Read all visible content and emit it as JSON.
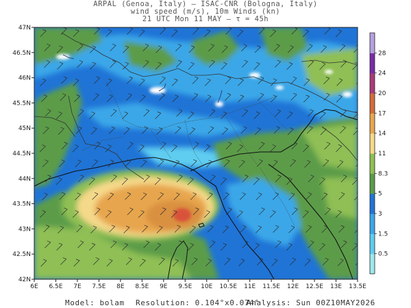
{
  "header": {
    "line1": "ARPAL (Genoa, Italy)  —  ISAC-CNR (Bologna, Italy)",
    "line2": "wind speed (m/s), 10m Winds (kn)",
    "line3": "21 UTC Mon 11 MAY  —  τ = 45h"
  },
  "footer": {
    "model": "Model: bolam",
    "resolution": "Resolution: 0.104°x0.074°",
    "analysis": "Analysis: Sun 00Z10MAY2026"
  },
  "map": {
    "lon_labels": [
      "6E",
      "6.5E",
      "7E",
      "7.5E",
      "8E",
      "8.5E",
      "9E",
      "9.5E",
      "10E",
      "10.5E",
      "11E",
      "11.5E",
      "12E",
      "12.5E",
      "13E",
      "13.5E"
    ],
    "lat_labels": [
      "47N",
      "46.5N",
      "46N",
      "45.5N",
      "45N",
      "44.5N",
      "44N",
      "43.5N",
      "43N",
      "42.5N",
      "42N"
    ],
    "lon_range": [
      6,
      13.5
    ],
    "lat_range": [
      42,
      47
    ],
    "field": "wind speed (m/s)",
    "barbs_unit": "kn"
  },
  "colorbar": {
    "labels": [
      "0.5",
      "1.5",
      "3",
      "5",
      "8.3",
      "11",
      "14",
      "17",
      "20",
      "24",
      "28"
    ],
    "colors": [
      "#9ee8ef",
      "#5fcdf0",
      "#3aa7e8",
      "#1f74d6",
      "#5b9c4a",
      "#8fbf55",
      "#f5d98a",
      "#e7a64e",
      "#d46b3a",
      "#a83a7a",
      "#7a2aa8",
      "#b5a0e0"
    ]
  },
  "colors": {
    "sea_low": "#1f74d6",
    "cyan": "#3aa7e8",
    "green": "#5b9c4a",
    "orange": "#e7a64e",
    "red": "#d9533a"
  }
}
